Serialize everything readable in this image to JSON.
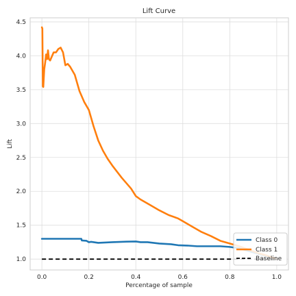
{
  "chart_data": {
    "type": "line",
    "title": "Lift Curve",
    "xlabel": "Percentage of sample",
    "ylabel": "Lift",
    "xlim": [
      -0.05,
      1.05
    ],
    "ylim": [
      0.84,
      4.56
    ],
    "xticks": [
      0.0,
      0.2,
      0.4,
      0.6,
      0.8,
      1.0
    ],
    "xtick_labels": [
      "0.0",
      "0.2",
      "0.4",
      "0.6",
      "0.8",
      "1.0"
    ],
    "yticks": [
      1.0,
      1.5,
      2.0,
      2.5,
      3.0,
      3.5,
      4.0,
      4.5
    ],
    "ytick_labels": [
      "1.0",
      "1.5",
      "2.0",
      "2.5",
      "3.0",
      "3.5",
      "4.0",
      "4.5"
    ],
    "grid": true,
    "legend_position": "lower-right",
    "series": [
      {
        "name": "Class 0",
        "color": "#1f77b4",
        "style": "solid",
        "x": [
          0.0,
          0.02,
          0.05,
          0.1,
          0.15,
          0.168,
          0.17,
          0.19,
          0.2,
          0.21,
          0.24,
          0.3,
          0.36,
          0.4,
          0.42,
          0.45,
          0.5,
          0.55,
          0.58,
          0.62,
          0.66,
          0.7,
          0.76,
          0.8,
          0.84,
          0.88,
          0.92,
          0.96,
          1.0
        ],
        "y": [
          1.3,
          1.3,
          1.3,
          1.3,
          1.3,
          1.3,
          1.275,
          1.27,
          1.25,
          1.255,
          1.24,
          1.25,
          1.258,
          1.26,
          1.25,
          1.25,
          1.23,
          1.22,
          1.205,
          1.2,
          1.19,
          1.19,
          1.19,
          1.18,
          1.16,
          1.12,
          1.08,
          1.04,
          1.0
        ]
      },
      {
        "name": "Class 1",
        "color": "#ff7f0e",
        "style": "solid",
        "x": [
          0.0,
          0.002,
          0.004,
          0.006,
          0.01,
          0.014,
          0.018,
          0.022,
          0.026,
          0.03,
          0.035,
          0.04,
          0.05,
          0.06,
          0.07,
          0.08,
          0.09,
          0.1,
          0.11,
          0.12,
          0.14,
          0.16,
          0.18,
          0.2,
          0.22,
          0.24,
          0.26,
          0.28,
          0.3,
          0.34,
          0.38,
          0.4,
          0.42,
          0.46,
          0.5,
          0.54,
          0.58,
          0.6,
          0.64,
          0.68,
          0.72,
          0.76,
          0.8,
          0.84,
          0.88,
          0.92,
          0.96,
          1.0
        ],
        "y": [
          4.42,
          4.4,
          3.55,
          3.54,
          3.8,
          3.9,
          4.02,
          3.95,
          4.08,
          3.95,
          3.93,
          3.97,
          4.05,
          4.05,
          4.1,
          4.12,
          4.05,
          3.86,
          3.88,
          3.84,
          3.72,
          3.48,
          3.32,
          3.2,
          2.96,
          2.75,
          2.6,
          2.48,
          2.38,
          2.2,
          2.04,
          1.93,
          1.88,
          1.8,
          1.72,
          1.65,
          1.6,
          1.56,
          1.48,
          1.4,
          1.34,
          1.27,
          1.23,
          1.19,
          1.14,
          1.09,
          1.05,
          1.0
        ]
      },
      {
        "name": "Baseline",
        "color": "#000000",
        "style": "dashed",
        "x": [
          0.0,
          1.0
        ],
        "y": [
          1.0,
          1.0
        ]
      }
    ]
  }
}
